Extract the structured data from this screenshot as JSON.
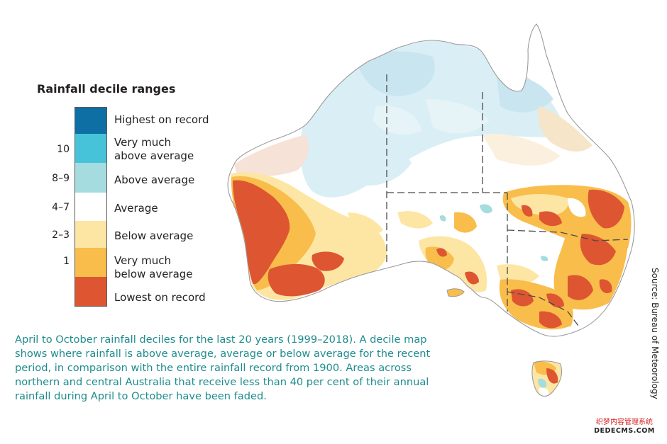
{
  "legend": {
    "title": "Rainfall decile ranges",
    "categories": [
      {
        "label_line1": "Highest on record",
        "label_line2": "",
        "decile": "",
        "color": "#0e6fa5"
      },
      {
        "label_line1": "Very much",
        "label_line2": "above average",
        "decile": "10",
        "color": "#46c2d9"
      },
      {
        "label_line1": "Above average",
        "label_line2": "",
        "decile": "8–9",
        "color": "#a5dcdf"
      },
      {
        "label_line1": "Average",
        "label_line2": "",
        "decile": "4–7",
        "color": "#ffffff"
      },
      {
        "label_line1": "Below average",
        "label_line2": "",
        "decile": "2–3",
        "color": "#fde6a4"
      },
      {
        "label_line1": "Very much",
        "label_line2": "below average",
        "decile": "1",
        "color": "#f9bd4b"
      },
      {
        "label_line1": "Lowest on record",
        "label_line2": "",
        "decile": "",
        "color": "#dd5631"
      }
    ]
  },
  "caption": "April to October rainfall deciles for the last 20 years (1999–2018). A decile map shows where rainfall is above average, average or below average for the recent period, in comparison with the entire rainfall record from 1900. Areas across northern and central Australia that receive less than 40 per cent of their annual rainfall during April to October have been faded.",
  "source": "Source: Bureau of Meteorology",
  "watermark": {
    "line1": "织梦内容管理系统",
    "line2": "DEDECMS.COM"
  },
  "map": {
    "region": "Australia",
    "colors": {
      "highest": "#0e6fa5",
      "very_much_above": "#46c2d9",
      "above": "#a5dcdf",
      "average": "#ffffff",
      "below": "#fde6a4",
      "very_much_below": "#f9bd4b",
      "lowest": "#dd5631",
      "faded_above": "#d6edf4",
      "faded_below": "#f7e2d8",
      "outline": "#9a9a9a",
      "border": "#4a4a4a"
    }
  }
}
